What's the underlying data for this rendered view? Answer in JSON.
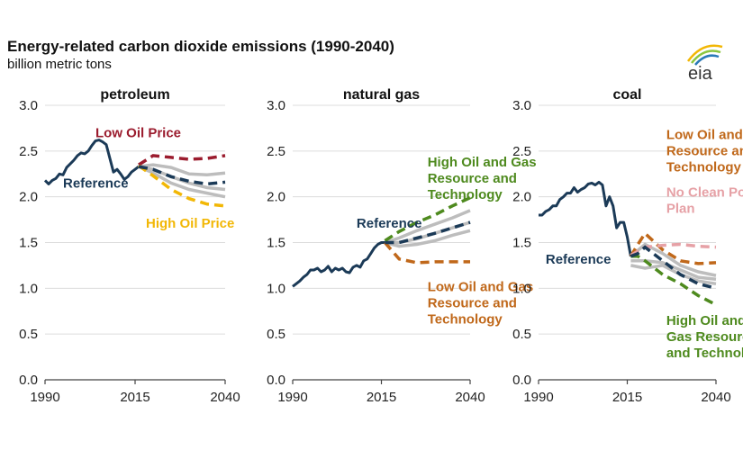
{
  "title": "Energy-related carbon dioxide emissions (1990-2040)",
  "subtitle": "billion metric tons",
  "logo_text": "eia",
  "colors": {
    "reference": "#1b3a57",
    "band": "#bdbdbd",
    "low_oil_price": "#9b1c2e",
    "high_oil_price": "#f2b705",
    "high_oil_gas": "#4e8a1e",
    "low_oil_gas": "#c0681a",
    "no_clean_power": "#e6a1a6",
    "grid": "#dcdcdc",
    "axis": "#444444"
  },
  "chart_data": [
    {
      "type": "line",
      "title": "petroleum",
      "xlim": [
        1990,
        2040
      ],
      "ylim": [
        0,
        3
      ],
      "xticks": [
        "1990",
        "2015",
        "2040"
      ],
      "yticks": [
        "0.0",
        "0.5",
        "1.0",
        "1.5",
        "2.0",
        "2.5",
        "3.0"
      ],
      "grid": true,
      "history": {
        "x": [
          1990,
          1991,
          1992,
          1993,
          1994,
          1995,
          1996,
          1997,
          1998,
          1999,
          2000,
          2001,
          2002,
          2003,
          2004,
          2005,
          2006,
          2007,
          2008,
          2009,
          2010,
          2011,
          2012,
          2013,
          2014,
          2015,
          2016
        ],
        "y": [
          2.18,
          2.14,
          2.18,
          2.2,
          2.25,
          2.24,
          2.32,
          2.36,
          2.4,
          2.45,
          2.48,
          2.47,
          2.5,
          2.56,
          2.61,
          2.62,
          2.6,
          2.57,
          2.42,
          2.27,
          2.3,
          2.25,
          2.19,
          2.22,
          2.27,
          2.3,
          2.33
        ]
      },
      "band": [
        {
          "x": [
            2016,
            2020,
            2025,
            2030,
            2035,
            2040
          ],
          "y": [
            2.33,
            2.35,
            2.32,
            2.25,
            2.24,
            2.26
          ]
        },
        {
          "x": [
            2016,
            2020,
            2025,
            2030,
            2035,
            2040
          ],
          "y": [
            2.33,
            2.3,
            2.22,
            2.15,
            2.1,
            2.08
          ]
        },
        {
          "x": [
            2016,
            2020,
            2025,
            2030,
            2035,
            2040
          ],
          "y": [
            2.33,
            2.26,
            2.15,
            2.08,
            2.04,
            2.0
          ]
        }
      ],
      "series": [
        {
          "name": "Reference",
          "x": [
            2016,
            2020,
            2025,
            2030,
            2035,
            2040
          ],
          "y": [
            2.33,
            2.3,
            2.22,
            2.17,
            2.14,
            2.16
          ],
          "color_key": "reference",
          "label_x": 1995,
          "label_y": 2.1
        },
        {
          "name": "Low Oil Price",
          "x": [
            2016,
            2020,
            2025,
            2030,
            2035,
            2040
          ],
          "y": [
            2.35,
            2.45,
            2.43,
            2.41,
            2.42,
            2.45
          ],
          "color_key": "low_oil_price",
          "label_x": 2004,
          "label_y": 2.65
        },
        {
          "name": "High Oil Price",
          "x": [
            2016,
            2020,
            2025,
            2030,
            2035,
            2040
          ],
          "y": [
            2.34,
            2.23,
            2.08,
            1.98,
            1.92,
            1.9
          ],
          "color_key": "high_oil_price",
          "label_x": 2018,
          "label_y": 1.66
        }
      ]
    },
    {
      "type": "line",
      "title": "natural gas",
      "xlim": [
        1990,
        2040
      ],
      "ylim": [
        0,
        3
      ],
      "xticks": [
        "1990",
        "2015",
        "2040"
      ],
      "yticks": [
        "0.0",
        "0.5",
        "1.0",
        "1.5",
        "2.0",
        "2.5",
        "3.0"
      ],
      "grid": true,
      "history": {
        "x": [
          1990,
          1991,
          1992,
          1993,
          1994,
          1995,
          1996,
          1997,
          1998,
          1999,
          2000,
          2001,
          2002,
          2003,
          2004,
          2005,
          2006,
          2007,
          2008,
          2009,
          2010,
          2011,
          2012,
          2013,
          2014,
          2015,
          2016
        ],
        "y": [
          1.02,
          1.05,
          1.08,
          1.12,
          1.15,
          1.2,
          1.2,
          1.22,
          1.18,
          1.2,
          1.24,
          1.18,
          1.22,
          1.2,
          1.22,
          1.18,
          1.17,
          1.23,
          1.25,
          1.23,
          1.3,
          1.32,
          1.38,
          1.44,
          1.48,
          1.5,
          1.5
        ]
      },
      "band": [
        {
          "x": [
            2016,
            2020,
            2025,
            2030,
            2035,
            2040
          ],
          "y": [
            1.5,
            1.55,
            1.63,
            1.7,
            1.77,
            1.85
          ]
        },
        {
          "x": [
            2016,
            2020,
            2025,
            2030,
            2035,
            2040
          ],
          "y": [
            1.5,
            1.5,
            1.54,
            1.6,
            1.66,
            1.72
          ]
        },
        {
          "x": [
            2016,
            2020,
            2025,
            2030,
            2035,
            2040
          ],
          "y": [
            1.5,
            1.46,
            1.48,
            1.52,
            1.58,
            1.63
          ]
        }
      ],
      "series": [
        {
          "name": "Reference",
          "x": [
            2016,
            2020,
            2025,
            2030,
            2035,
            2040
          ],
          "y": [
            1.5,
            1.5,
            1.55,
            1.6,
            1.66,
            1.72
          ],
          "color_key": "reference",
          "label_x": 2008,
          "label_y": 1.66
        },
        {
          "name": "High Oil and Gas Resource and Technology",
          "x": [
            2016,
            2020,
            2025,
            2030,
            2035,
            2040
          ],
          "y": [
            1.52,
            1.62,
            1.72,
            1.8,
            1.9,
            1.99
          ],
          "color_key": "high_oil_gas",
          "label_lines": [
            "High Oil and Gas",
            "Resource and",
            "Technology"
          ],
          "label_x": 2028,
          "label_y": 2.33
        },
        {
          "name": "Low Oil and Gas Resource and Technology",
          "x": [
            2016,
            2020,
            2025,
            2030,
            2035,
            2040
          ],
          "y": [
            1.5,
            1.32,
            1.28,
            1.29,
            1.29,
            1.29
          ],
          "color_key": "low_oil_gas",
          "label_lines": [
            "Low Oil and Gas",
            "Resource and",
            "Technology"
          ],
          "label_x": 2028,
          "label_y": 0.97
        }
      ]
    },
    {
      "type": "line",
      "title": "coal",
      "xlim": [
        1990,
        2040
      ],
      "ylim": [
        0,
        3
      ],
      "xticks": [
        "1990",
        "2015",
        "2040"
      ],
      "yticks": [
        "0.0",
        "0.5",
        "1.0",
        "1.5",
        "2.0",
        "2.5",
        "3.0"
      ],
      "grid": true,
      "history": {
        "x": [
          1990,
          1991,
          1992,
          1993,
          1994,
          1995,
          1996,
          1997,
          1998,
          1999,
          2000,
          2001,
          2002,
          2003,
          2004,
          2005,
          2006,
          2007,
          2008,
          2009,
          2010,
          2011,
          2012,
          2013,
          2014,
          2015,
          2016
        ],
        "y": [
          1.8,
          1.8,
          1.84,
          1.86,
          1.9,
          1.9,
          1.97,
          2.0,
          2.04,
          2.04,
          2.1,
          2.05,
          2.08,
          2.1,
          2.14,
          2.15,
          2.13,
          2.16,
          2.13,
          1.9,
          2.0,
          1.9,
          1.66,
          1.72,
          1.72,
          1.56,
          1.35
        ]
      },
      "band": [
        {
          "x": [
            2016,
            2020,
            2025,
            2030,
            2035,
            2040
          ],
          "y": [
            1.35,
            1.48,
            1.38,
            1.25,
            1.18,
            1.14
          ]
        },
        {
          "x": [
            2016,
            2020,
            2025,
            2030,
            2035,
            2040
          ],
          "y": [
            1.3,
            1.3,
            1.28,
            1.2,
            1.12,
            1.1
          ]
        },
        {
          "x": [
            2016,
            2020,
            2025,
            2030,
            2035,
            2040
          ],
          "y": [
            1.25,
            1.22,
            1.25,
            1.15,
            1.08,
            1.05
          ]
        }
      ],
      "series": [
        {
          "name": "Reference",
          "x": [
            2016,
            2018,
            2020,
            2025,
            2030,
            2035,
            2040
          ],
          "y": [
            1.35,
            1.38,
            1.45,
            1.3,
            1.15,
            1.05,
            1.0
          ],
          "color_key": "reference",
          "label_x": 1992,
          "label_y": 1.27
        },
        {
          "name": "Low Oil and Gas Resource and Technology",
          "x": [
            2016,
            2018,
            2020,
            2025,
            2030,
            2035,
            2040
          ],
          "y": [
            1.35,
            1.48,
            1.6,
            1.42,
            1.3,
            1.27,
            1.28
          ],
          "color_key": "low_oil_gas",
          "label_lines": [
            "Low Oil and Gas",
            "Resource and",
            "Technology"
          ],
          "label_x": 2026,
          "label_y": 2.63
        },
        {
          "name": "No Clean Power Plan",
          "x": [
            2016,
            2020,
            2025,
            2030,
            2035,
            2040
          ],
          "y": [
            1.36,
            1.45,
            1.47,
            1.48,
            1.46,
            1.45
          ],
          "color_key": "no_clean_power",
          "label_lines": [
            "No Clean Power",
            "Plan"
          ],
          "label_x": 2026,
          "label_y": 2.0
        },
        {
          "name": "High Oil and Gas Resource and Technology",
          "x": [
            2016,
            2018,
            2020,
            2025,
            2030,
            2035,
            2040
          ],
          "y": [
            1.35,
            1.35,
            1.3,
            1.15,
            1.05,
            0.92,
            0.82
          ],
          "color_key": "high_oil_gas",
          "label_lines": [
            "High Oil and",
            "Gas Resource",
            "and Technology"
          ],
          "label_x": 2026,
          "label_y": 0.6
        }
      ]
    }
  ]
}
